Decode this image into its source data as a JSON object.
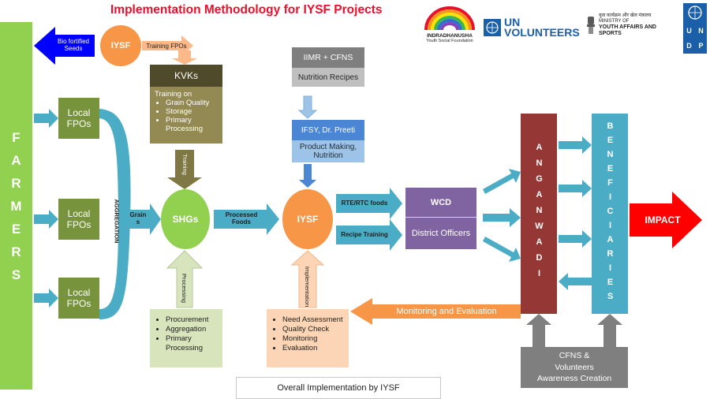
{
  "title": "Implementation Methodology for IYSF Projects",
  "colors": {
    "farmers_bar": "#92d050",
    "fpo": "#77933c",
    "arrow_blue": "#4bacc6",
    "orange": "#f79646",
    "shg_green": "#92d050",
    "anganwadi": "#953735",
    "beneficiaries": "#4bacc6",
    "wcd": "#8064a2",
    "impact_red": "#ff0000"
  },
  "farmers": {
    "letters": [
      "F",
      "A",
      "R",
      "M",
      "E",
      "R",
      "S"
    ]
  },
  "bio_fortified": {
    "text": "Bio fortified Seeds",
    "icon": "arrow-left-icon"
  },
  "iysf_top": "IYSF",
  "training_fpos": "Training FPOs",
  "fpos": [
    {
      "label": "Local FPOs"
    },
    {
      "label": "Local FPOs"
    },
    {
      "label": "Local FPOs"
    }
  ],
  "aggregation": "AGGREGATION",
  "grains": "Grains",
  "kvks": {
    "title": "KVKs",
    "intro": "Training on",
    "items": [
      "Grain Quality",
      "Storage",
      "Primary Processing"
    ]
  },
  "training_vertical": "Training",
  "shgs": "SHGs",
  "processing_vertical": "Processing",
  "shg_inputs": [
    "Procurement",
    "Aggregation",
    "Primary Processing"
  ],
  "processed_foods": "Processed Foods",
  "iimr": {
    "top": "IIMR + CFNS",
    "bottom": "Nutrition Recipes"
  },
  "ifsy": {
    "top": "IFSY, Dr. Preeti",
    "bottom": "Product Making, Nutrition"
  },
  "iysf_center": "IYSF",
  "implementation_vertical": "Implementation",
  "iysf_inputs": [
    "Need Assessment",
    "Quality Check",
    "Monitoring",
    "Evaluation"
  ],
  "rte_rtc": "RTE/RTC foods",
  "recipe_training": "Recipe Training",
  "wcd": {
    "top": "WCD",
    "bottom": "District Officers"
  },
  "anganwadi": "ANGANWADI",
  "beneficiaries": "BENEFICIARIES",
  "impact": "IMPACT",
  "monitoring": "Monitoring and Evaluation",
  "cfns": {
    "line1": "CFNS &",
    "line2": "Volunteers",
    "line3": "Awareness Creation"
  },
  "caption": "Overall Implementation by IYSF",
  "logos": {
    "indradhanusha": "INDRADHANUSHA",
    "indradhanusha_sub": "Youth Social Foundation",
    "un_volunteers_1": "UN",
    "un_volunteers_2": "VOLUNTEERS",
    "ministry_hindi": "युवा कार्यक्रम और खेल मंत्रालय",
    "ministry_small": "MINISTRY OF",
    "ministry_name": "YOUTH AFFAIRS AND SPORTS",
    "undp_letters": [
      "U",
      "N",
      "D",
      "P"
    ]
  }
}
